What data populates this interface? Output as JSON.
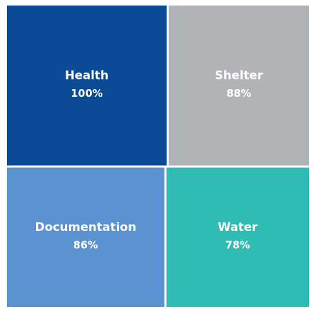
{
  "chart_data": {
    "type": "treemap",
    "categories": [
      "Health",
      "Shelter",
      "Documentation",
      "Water"
    ],
    "values": [
      100,
      88,
      86,
      78
    ],
    "value_labels": [
      "100%",
      "88%",
      "86%",
      "78%"
    ],
    "colors": [
      "#0b4a94",
      "#b1b3b6",
      "#5b92d0",
      "#2ebcb3"
    ]
  }
}
